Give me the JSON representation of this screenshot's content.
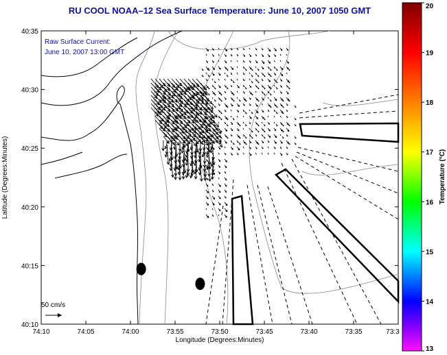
{
  "title": "RU COOL   NOAA–12  Sea Surface Temperature:  June 10, 2007 1050 GMT",
  "annotation": {
    "line1": "Raw Surface Current:",
    "line2": "June 10, 2007 13:00 GMT"
  },
  "scale_label": "50 cm/s",
  "colorbar": {
    "label": "Temperature (°C)",
    "ticks": [
      "20",
      "19",
      "18",
      "17",
      "16",
      "15",
      "14",
      "13"
    ],
    "range": [
      13,
      20
    ],
    "colors": [
      "#ff10ff",
      "#8000ff",
      "#0000ff",
      "#0080ff",
      "#00ffff",
      "#00ff80",
      "#00ff00",
      "#80ff00",
      "#ffff00",
      "#ffc000",
      "#ff8000",
      "#ff4000",
      "#ff0000",
      "#c00000",
      "#800000"
    ]
  },
  "chart_data": {
    "type": "map",
    "xlabel": "Longitude (Degrees:Minutes)",
    "ylabel": "Latitude (Degrees:Minutes)",
    "x_ticks": [
      "74:10",
      "74:05",
      "74:00",
      "73:55",
      "73:50",
      "73:45",
      "73:40",
      "73:35",
      "73:3"
    ],
    "y_ticks": [
      "40:35",
      "40:30",
      "40:25",
      "40:20",
      "40:15",
      "40:10"
    ],
    "xlim_deg": [
      -74.1667,
      -73.5
    ],
    "ylim_deg": [
      40.1667,
      40.5833
    ],
    "stations": [
      {
        "lon": -73.98,
        "lat": 40.245
      },
      {
        "lon": -73.87,
        "lat": 40.224
      }
    ]
  }
}
